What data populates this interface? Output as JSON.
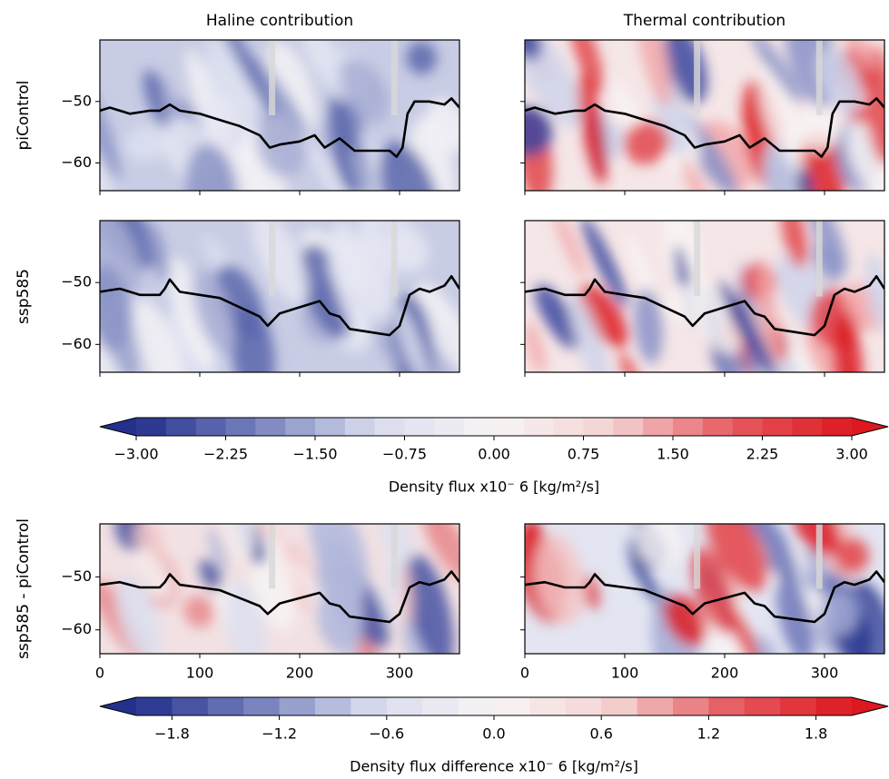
{
  "chart_data": [
    {
      "type": "contour",
      "title": "Haline contribution",
      "ylabel": "piControl",
      "field": "haline",
      "xlim": [
        0,
        360
      ],
      "ylim": [
        -64.5,
        -40
      ],
      "xticks": [
        0,
        100,
        200,
        300
      ],
      "xticklabels": false,
      "yticks": [
        {
          "value": -50,
          "label": "−50"
        },
        {
          "value": -60,
          "label": "−60"
        }
      ],
      "yticklabels": true,
      "series": [
        {
          "color": "#000000",
          "x": [
            0,
            10,
            20,
            30,
            50,
            60,
            70,
            80,
            100,
            120,
            140,
            160,
            170,
            180,
            200,
            215,
            225,
            240,
            255,
            270,
            290,
            297,
            303,
            308,
            315,
            330,
            345,
            352,
            360
          ],
          "values": [
            -51.5,
            -51,
            -51.5,
            -52,
            -51.5,
            -51.5,
            -50.5,
            -51.5,
            -52,
            -53,
            -54,
            -55.5,
            -57.5,
            -57,
            -56.5,
            -55.5,
            -57.5,
            -56,
            -58,
            -58,
            -58,
            -59,
            -57.5,
            -52,
            -50,
            -50,
            -50.5,
            -49.5,
            -51
          ]
        }
      ]
    },
    {
      "type": "contour",
      "title": "Thermal contribution",
      "field": "thermal",
      "xlim": [
        0,
        360
      ],
      "ylim": [
        -64.5,
        -40
      ],
      "xticks": [
        0,
        100,
        200,
        300
      ],
      "xticklabels": false,
      "yticks": [
        -50,
        -60
      ],
      "yticklabels": false,
      "series": [
        {
          "color": "#000000",
          "x": [
            0,
            10,
            20,
            30,
            50,
            60,
            70,
            80,
            100,
            120,
            140,
            160,
            170,
            180,
            200,
            215,
            225,
            240,
            255,
            270,
            290,
            297,
            303,
            308,
            315,
            330,
            345,
            352,
            360
          ],
          "values": [
            -51.5,
            -51,
            -51.5,
            -52,
            -51.5,
            -51.5,
            -50.5,
            -51.5,
            -52,
            -53,
            -54,
            -55.5,
            -57.5,
            -57,
            -56.5,
            -55.5,
            -57.5,
            -56,
            -58,
            -58,
            -58,
            -59,
            -57.5,
            -52,
            -50,
            -50,
            -50.5,
            -49.5,
            -51
          ]
        }
      ]
    },
    {
      "type": "contour",
      "ylabel": "ssp585",
      "field": "haline",
      "xlim": [
        0,
        360
      ],
      "ylim": [
        -64.5,
        -40
      ],
      "xticks": [
        0,
        100,
        200,
        300
      ],
      "xticklabels": false,
      "yticks": [
        {
          "value": -50,
          "label": "−50"
        },
        {
          "value": -60,
          "label": "−60"
        }
      ],
      "yticklabels": true,
      "series": [
        {
          "color": "#000000",
          "x": [
            0,
            20,
            40,
            60,
            65,
            70,
            80,
            100,
            120,
            140,
            160,
            168,
            180,
            200,
            220,
            230,
            240,
            250,
            270,
            290,
            300,
            310,
            320,
            330,
            345,
            352,
            360
          ],
          "values": [
            -51.5,
            -51,
            -52,
            -52,
            -51,
            -49.5,
            -51.5,
            -52,
            -52.5,
            -54,
            -55.5,
            -57,
            -55,
            -54,
            -53,
            -55,
            -55.5,
            -57.5,
            -58,
            -58.5,
            -57,
            -52,
            -51,
            -51.5,
            -50.5,
            -49,
            -51
          ]
        }
      ]
    },
    {
      "type": "contour",
      "field": "thermal",
      "xlim": [
        0,
        360
      ],
      "ylim": [
        -64.5,
        -40
      ],
      "xticks": [
        0,
        100,
        200,
        300
      ],
      "xticklabels": false,
      "yticks": [
        -50,
        -60
      ],
      "yticklabels": false,
      "series": [
        {
          "color": "#000000",
          "x": [
            0,
            20,
            40,
            60,
            65,
            70,
            80,
            100,
            120,
            140,
            160,
            168,
            180,
            200,
            220,
            230,
            240,
            250,
            270,
            290,
            300,
            310,
            320,
            330,
            345,
            352,
            360
          ],
          "values": [
            -51.5,
            -51,
            -52,
            -52,
            -51,
            -49.5,
            -51.5,
            -52,
            -52.5,
            -54,
            -55.5,
            -57,
            -55,
            -54,
            -53,
            -55,
            -55.5,
            -57.5,
            -58,
            -58.5,
            -57,
            -52,
            -51,
            -51.5,
            -50.5,
            -49,
            -51
          ]
        }
      ]
    },
    {
      "type": "contour",
      "ylabel": "ssp585 - piControl",
      "field": "haline-diff",
      "xlim": [
        0,
        360
      ],
      "ylim": [
        -64.5,
        -40
      ],
      "xticks": [
        0,
        100,
        200,
        300
      ],
      "xticklabels": true,
      "yticks": [
        {
          "value": -50,
          "label": "−50"
        },
        {
          "value": -60,
          "label": "−60"
        }
      ],
      "yticklabels": true,
      "series": [
        {
          "color": "#000000",
          "x": [
            0,
            20,
            40,
            60,
            65,
            70,
            80,
            100,
            120,
            140,
            160,
            168,
            180,
            200,
            220,
            230,
            240,
            250,
            270,
            290,
            300,
            310,
            320,
            330,
            345,
            352,
            360
          ],
          "values": [
            -51.5,
            -51,
            -52,
            -52,
            -51,
            -49.5,
            -51.5,
            -52,
            -52.5,
            -54,
            -55.5,
            -57,
            -55,
            -54,
            -53,
            -55,
            -55.5,
            -57.5,
            -58,
            -58.5,
            -57,
            -52,
            -51,
            -51.5,
            -50.5,
            -49,
            -51
          ]
        }
      ]
    },
    {
      "type": "contour",
      "field": "thermal-diff",
      "xlim": [
        0,
        360
      ],
      "ylim": [
        -64.5,
        -40
      ],
      "xticks": [
        0,
        100,
        200,
        300
      ],
      "xticklabels": true,
      "yticks": [
        -50,
        -60
      ],
      "yticklabels": false,
      "series": [
        {
          "color": "#000000",
          "x": [
            0,
            20,
            40,
            60,
            65,
            70,
            80,
            100,
            120,
            140,
            160,
            168,
            180,
            200,
            220,
            230,
            240,
            250,
            270,
            290,
            300,
            310,
            320,
            330,
            345,
            352,
            360
          ],
          "values": [
            -51.5,
            -51,
            -52,
            -52,
            -51,
            -49.5,
            -51.5,
            -52,
            -52.5,
            -54,
            -55.5,
            -57,
            -55,
            -54,
            -53,
            -55,
            -55.5,
            -57.5,
            -58,
            -58.5,
            -57,
            -52,
            -51,
            -51.5,
            -50.5,
            -49,
            -51
          ]
        }
      ]
    },
    {
      "type": "colorbar",
      "label": "Density flux x10⁻ 6 [kg/m²/s]",
      "lim": [
        -3,
        3
      ],
      "n_levels": 24,
      "extend": "both",
      "colors": [
        "#23308c",
        "#7580bd",
        "#d9dcee",
        "#f7f4f5",
        "#f4d2d2",
        "#e65a5f",
        "#dd1820"
      ],
      "ticks": [
        {
          "value": -3,
          "label": "−3.00"
        },
        {
          "value": -2.25,
          "label": "−2.25"
        },
        {
          "value": -1.5,
          "label": "−1.50"
        },
        {
          "value": -0.75,
          "label": "−0.75"
        },
        {
          "value": 0,
          "label": "0.00"
        },
        {
          "value": 0.75,
          "label": "0.75"
        },
        {
          "value": 1.5,
          "label": "1.50"
        },
        {
          "value": 2.25,
          "label": "2.25"
        },
        {
          "value": 3,
          "label": "3.00"
        }
      ]
    },
    {
      "type": "colorbar",
      "label": "Density flux difference x10⁻ 6 [kg/m²/s]",
      "lim": [
        -2,
        2
      ],
      "n_levels": 20,
      "extend": "both",
      "colors": [
        "#23308c",
        "#7580bd",
        "#d9dcee",
        "#f7f4f5",
        "#f4d2d2",
        "#e65a5f",
        "#dd1820"
      ],
      "ticks": [
        {
          "value": -1.8,
          "label": "−1.8"
        },
        {
          "value": -1.2,
          "label": "−1.2"
        },
        {
          "value": -0.6,
          "label": "−0.6"
        },
        {
          "value": 0,
          "label": "0.0"
        },
        {
          "value": 0.6,
          "label": "0.6"
        },
        {
          "value": 1.2,
          "label": "1.2"
        },
        {
          "value": 1.8,
          "label": "1.8"
        }
      ]
    }
  ]
}
